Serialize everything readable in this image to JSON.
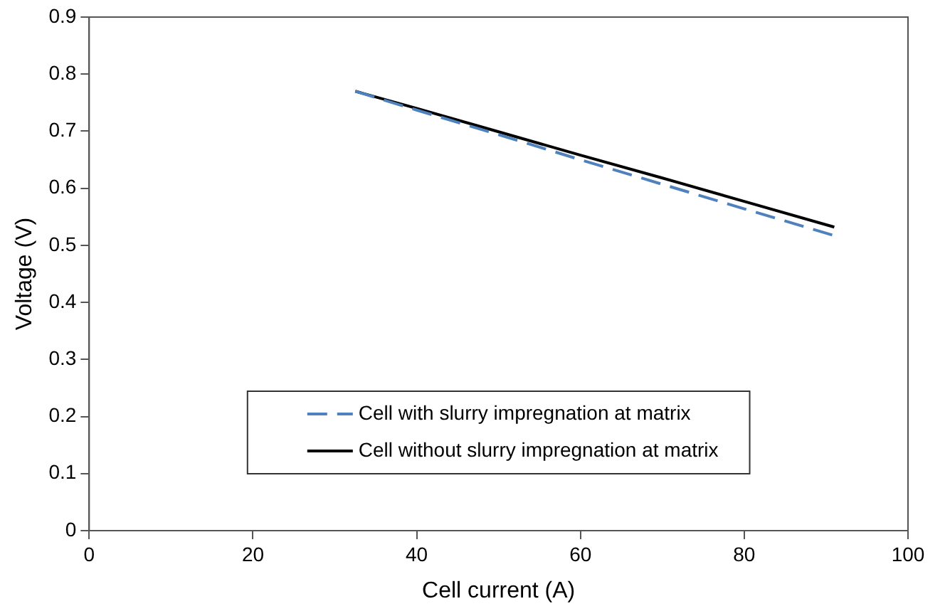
{
  "chart_data": {
    "type": "line",
    "xlabel": "Cell current (A)",
    "ylabel": "Voltage (V)",
    "xlim": [
      0,
      100
    ],
    "xticks": [
      0,
      20,
      40,
      60,
      80,
      100
    ],
    "ylim": [
      0,
      0.9
    ],
    "yticks": [
      0,
      0.1,
      0.2,
      0.3,
      0.4,
      0.5,
      0.6,
      0.7,
      0.8,
      0.9
    ],
    "x": [
      32.5,
      40,
      50,
      60,
      70,
      80,
      91
    ],
    "series": [
      {
        "name": "Cell with slurry impregnation at matrix",
        "color": "#4f81bd",
        "line_style": "dashed",
        "values": [
          0.77,
          0.737,
          0.694,
          0.65,
          0.607,
          0.564,
          0.517
        ]
      },
      {
        "name": "Cell without slurry impregnation at matrix",
        "color": "#000000",
        "line_style": "solid",
        "values": [
          0.77,
          0.74,
          0.699,
          0.658,
          0.618,
          0.577,
          0.532
        ]
      }
    ],
    "grid": false,
    "marker": "none",
    "legend": "bottom"
  }
}
